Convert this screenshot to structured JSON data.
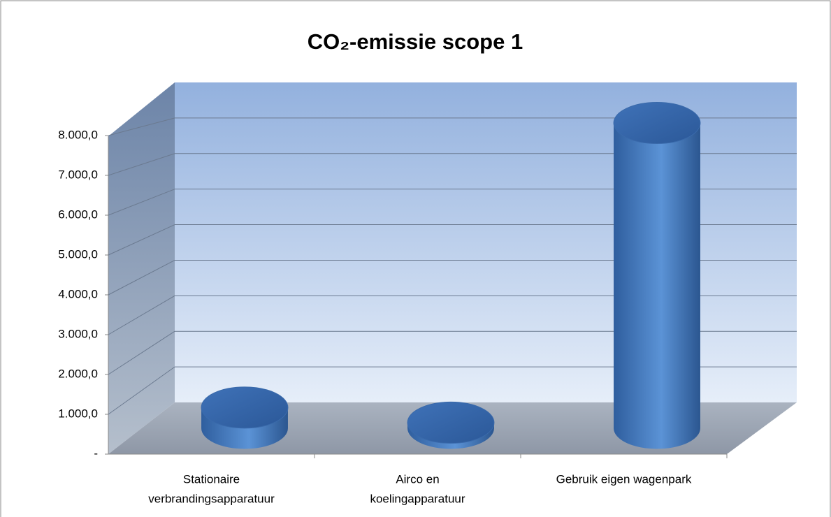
{
  "chart_data": {
    "type": "bar3d",
    "title": "CO₂-emissie scope 1",
    "categories": [
      [
        "Stationaire",
        "verbrandingsapparatuur"
      ],
      [
        "Airco en",
        "koelingapparatuur"
      ],
      [
        "Gebruik eigen wagenpark"
      ]
    ],
    "values": [
      550,
      150,
      8100
    ],
    "color": "#4a7ec4",
    "ylim": [
      0,
      9000
    ],
    "yticks": [
      {
        "value": 0,
        "label": "-"
      },
      {
        "value": 1000,
        "label": "1.000,0"
      },
      {
        "value": 2000,
        "label": "2.000,0"
      },
      {
        "value": 3000,
        "label": "3.000,0"
      },
      {
        "value": 4000,
        "label": "4.000,0"
      },
      {
        "value": 5000,
        "label": "5.000,0"
      },
      {
        "value": 6000,
        "label": "6.000,0"
      },
      {
        "value": 7000,
        "label": "7.000,0"
      },
      {
        "value": 8000,
        "label": "8.000,0"
      }
    ],
    "grid": true
  }
}
